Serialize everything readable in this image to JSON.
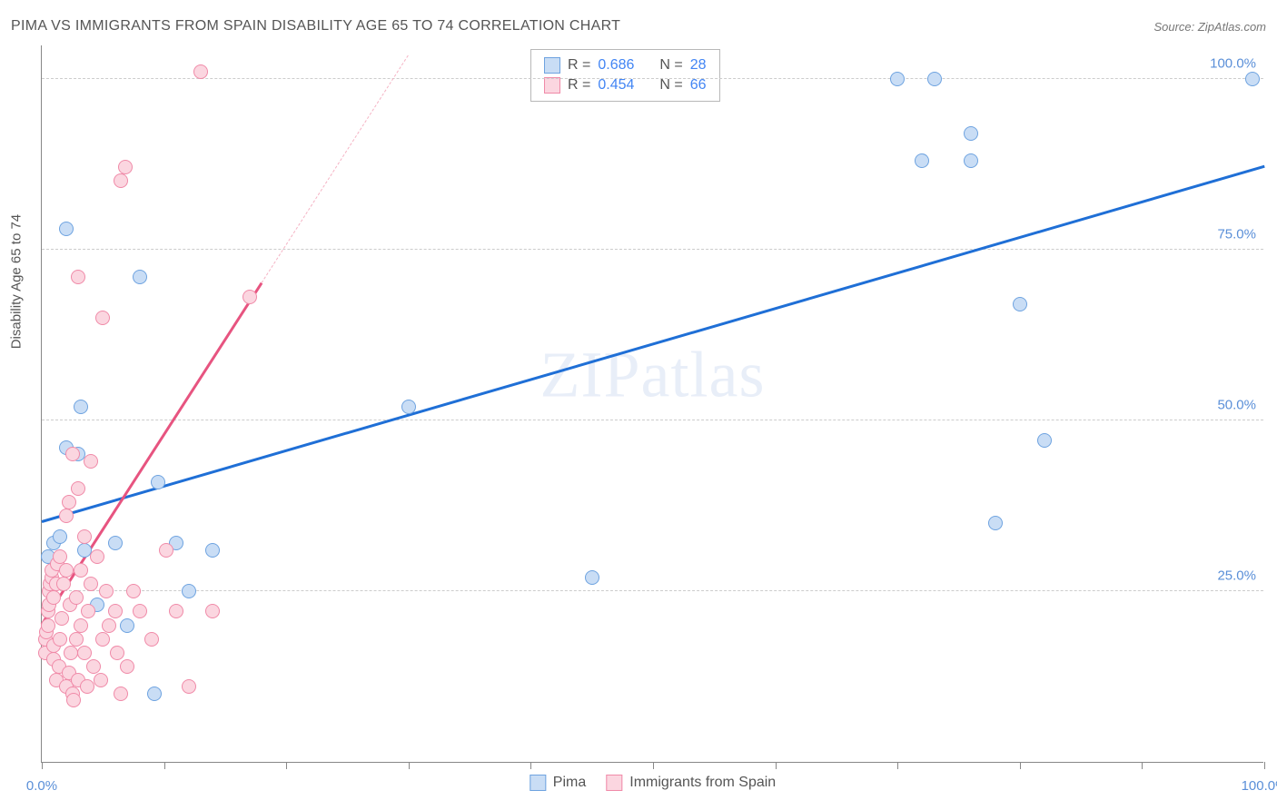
{
  "title": "PIMA VS IMMIGRANTS FROM SPAIN DISABILITY AGE 65 TO 74 CORRELATION CHART",
  "source": "Source: ZipAtlas.com",
  "y_axis_title": "Disability Age 65 to 74",
  "watermark": "ZIPatlas",
  "chart": {
    "type": "scatter",
    "xlim": [
      0,
      100
    ],
    "ylim": [
      0,
      105
    ],
    "x_ticks": [
      0,
      10,
      20,
      30,
      40,
      50,
      60,
      70,
      80,
      90,
      100
    ],
    "x_labels": [
      {
        "v": 0,
        "t": "0.0%"
      },
      {
        "v": 100,
        "t": "100.0%"
      }
    ],
    "y_gridlines": [
      25,
      50,
      75,
      100
    ],
    "y_labels": [
      {
        "v": 25,
        "t": "25.0%"
      },
      {
        "v": 50,
        "t": "50.0%"
      },
      {
        "v": 75,
        "t": "75.0%"
      },
      {
        "v": 100,
        "t": "100.0%"
      }
    ],
    "background_color": "#ffffff",
    "grid_color": "#cccccc",
    "axis_color": "#888888",
    "axis_label_color": "#5a8fd8",
    "point_radius": 8,
    "point_border_width": 1.6,
    "series": [
      {
        "name": "Pima",
        "color_fill": "#c9ddf5",
        "color_stroke": "#6ea3e0",
        "R": "0.686",
        "N": "28",
        "trend": {
          "x1": 0,
          "y1": 35,
          "x2": 100,
          "y2": 87,
          "color": "#1f6fd6",
          "width": 3,
          "dash": "none",
          "extrapolate": false
        },
        "points": [
          [
            0.5,
            30
          ],
          [
            1,
            32
          ],
          [
            1.5,
            33
          ],
          [
            2,
            46
          ],
          [
            2,
            78
          ],
          [
            3,
            45
          ],
          [
            3.2,
            52
          ],
          [
            3.5,
            31
          ],
          [
            4.5,
            23
          ],
          [
            6,
            32
          ],
          [
            7,
            20
          ],
          [
            8,
            71
          ],
          [
            9.2,
            10
          ],
          [
            9.5,
            41
          ],
          [
            11,
            32
          ],
          [
            12,
            25
          ],
          [
            14,
            31
          ],
          [
            30,
            52
          ],
          [
            45,
            27
          ],
          [
            70,
            100
          ],
          [
            72,
            88
          ],
          [
            73,
            100
          ],
          [
            76,
            88
          ],
          [
            76,
            92
          ],
          [
            78,
            35
          ],
          [
            80,
            67
          ],
          [
            82,
            47
          ],
          [
            99,
            100
          ]
        ]
      },
      {
        "name": "Immigrants from Spain",
        "color_fill": "#fbd6e0",
        "color_stroke": "#f08aa8",
        "R": "0.454",
        "N": "66",
        "trend": {
          "x1": 0,
          "y1": 20,
          "x2": 18,
          "y2": 70,
          "color": "#e75480",
          "width": 3,
          "dash": "none",
          "extrapolate_to_x": 30,
          "extrapolate_color": "#f5b3c4"
        },
        "points": [
          [
            0.3,
            16
          ],
          [
            0.3,
            18
          ],
          [
            0.4,
            19
          ],
          [
            0.5,
            20
          ],
          [
            0.5,
            22
          ],
          [
            0.6,
            23
          ],
          [
            0.6,
            25
          ],
          [
            0.7,
            26
          ],
          [
            0.8,
            27
          ],
          [
            0.8,
            28
          ],
          [
            1,
            15
          ],
          [
            1,
            17
          ],
          [
            1,
            24
          ],
          [
            1.2,
            12
          ],
          [
            1.2,
            26
          ],
          [
            1.3,
            29
          ],
          [
            1.4,
            14
          ],
          [
            1.5,
            18
          ],
          [
            1.5,
            30
          ],
          [
            1.6,
            21
          ],
          [
            1.8,
            26
          ],
          [
            2,
            11
          ],
          [
            2,
            28
          ],
          [
            2,
            36
          ],
          [
            2.2,
            13
          ],
          [
            2.2,
            38
          ],
          [
            2.3,
            23
          ],
          [
            2.4,
            16
          ],
          [
            2.5,
            10
          ],
          [
            2.5,
            45
          ],
          [
            2.6,
            9
          ],
          [
            2.8,
            18
          ],
          [
            2.8,
            24
          ],
          [
            3,
            12
          ],
          [
            3,
            40
          ],
          [
            3,
            71
          ],
          [
            3.2,
            20
          ],
          [
            3.2,
            28
          ],
          [
            3.5,
            16
          ],
          [
            3.5,
            33
          ],
          [
            3.7,
            11
          ],
          [
            3.8,
            22
          ],
          [
            4,
            26
          ],
          [
            4,
            44
          ],
          [
            4.2,
            14
          ],
          [
            4.5,
            30
          ],
          [
            4.8,
            12
          ],
          [
            5,
            18
          ],
          [
            5,
            65
          ],
          [
            5.3,
            25
          ],
          [
            5.5,
            20
          ],
          [
            6,
            22
          ],
          [
            6.2,
            16
          ],
          [
            6.5,
            10
          ],
          [
            6.5,
            85
          ],
          [
            6.8,
            87
          ],
          [
            7,
            14
          ],
          [
            7.5,
            25
          ],
          [
            8,
            22
          ],
          [
            9,
            18
          ],
          [
            10.2,
            31
          ],
          [
            11,
            22
          ],
          [
            12,
            11
          ],
          [
            13,
            101
          ],
          [
            14,
            22
          ],
          [
            17,
            68
          ]
        ]
      }
    ]
  },
  "correlation_box": {
    "rows": [
      {
        "swatch_fill": "#c9ddf5",
        "swatch_stroke": "#6ea3e0",
        "r_label": "R =",
        "r_val": "0.686",
        "n_label": "N =",
        "n_val": "28"
      },
      {
        "swatch_fill": "#fbd6e0",
        "swatch_stroke": "#f08aa8",
        "r_label": "R =",
        "r_val": "0.454",
        "n_label": "N =",
        "n_val": "66"
      }
    ]
  },
  "legend": [
    {
      "swatch_fill": "#c9ddf5",
      "swatch_stroke": "#6ea3e0",
      "label": "Pima"
    },
    {
      "swatch_fill": "#fbd6e0",
      "swatch_stroke": "#f08aa8",
      "label": "Immigrants from Spain"
    }
  ]
}
